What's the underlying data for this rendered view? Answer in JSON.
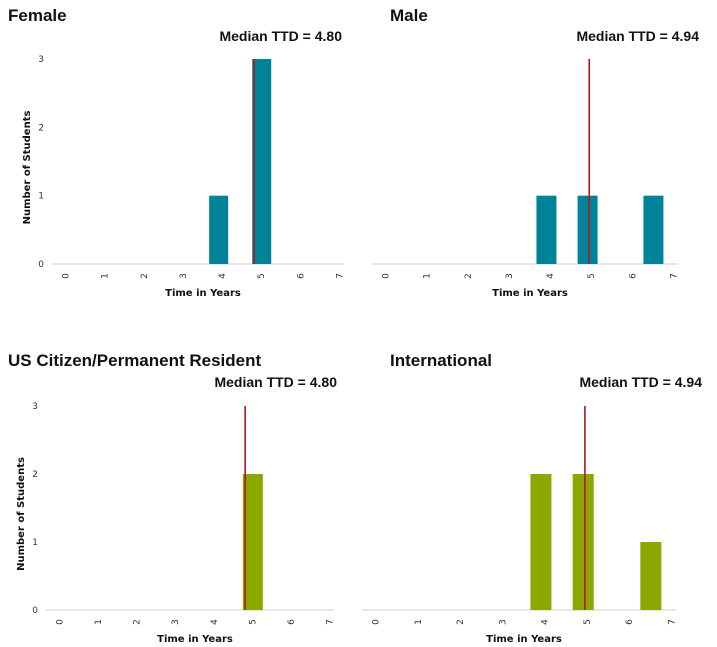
{
  "chart_data": [
    {
      "type": "bar",
      "title": "Female",
      "median_label": "Median TTD = 4.80",
      "median": 4.8,
      "xlabel": "Time in Years",
      "ylabel": "Number of Students",
      "xlim": [
        0,
        7
      ],
      "ylim": [
        0,
        3
      ],
      "xticks": [
        "0",
        "1",
        "2",
        "3",
        "4",
        "5",
        "6",
        "7"
      ],
      "yticks": [
        "0",
        "1",
        "2",
        "3"
      ],
      "bars": [
        {
          "x": 3.9,
          "value": 1
        },
        {
          "x": 5.0,
          "value": 3
        }
      ],
      "bar_color": "#008299",
      "median_color": "#b2171c"
    },
    {
      "type": "bar",
      "title": "Male",
      "median_label": "Median TTD = 4.94",
      "median": 4.94,
      "xlabel": "Time in Years",
      "ylabel": "",
      "xlim": [
        0,
        7
      ],
      "ylim": [
        0,
        3
      ],
      "xticks": [
        "0",
        "1",
        "2",
        "3",
        "4",
        "5",
        "6",
        "7"
      ],
      "yticks": [],
      "bars": [
        {
          "x": 3.9,
          "value": 1
        },
        {
          "x": 4.9,
          "value": 1
        },
        {
          "x": 6.5,
          "value": 1
        }
      ],
      "bar_color": "#008299",
      "median_color": "#b2171c"
    },
    {
      "type": "bar",
      "title": "US Citizen/Permanent Resident",
      "median_label": "Median TTD = 4.80",
      "median": 4.8,
      "xlabel": "Time in Years",
      "ylabel": "Number of Students",
      "xlim": [
        0,
        7
      ],
      "ylim": [
        0,
        3
      ],
      "xticks": [
        "0",
        "1",
        "2",
        "3",
        "4",
        "5",
        "6",
        "7"
      ],
      "yticks": [
        "0",
        "1",
        "2",
        "3"
      ],
      "bars": [
        {
          "x": 5.0,
          "value": 2
        }
      ],
      "bar_color": "#8ba800",
      "median_color": "#b2171c"
    },
    {
      "type": "bar",
      "title": "International",
      "median_label": "Median TTD = 4.94",
      "median": 4.94,
      "xlabel": "Time in Years",
      "ylabel": "",
      "xlim": [
        0,
        7
      ],
      "ylim": [
        0,
        3
      ],
      "xticks": [
        "0",
        "1",
        "2",
        "3",
        "4",
        "5",
        "6",
        "7"
      ],
      "yticks": [],
      "bars": [
        {
          "x": 3.9,
          "value": 2
        },
        {
          "x": 4.9,
          "value": 2
        },
        {
          "x": 6.5,
          "value": 1
        }
      ],
      "bar_color": "#8ba800",
      "median_color": "#b2171c"
    }
  ]
}
